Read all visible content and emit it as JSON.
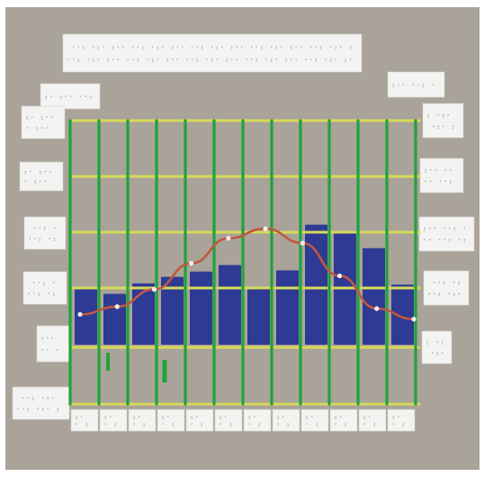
{
  "image": {
    "board_color": "#a9a39a",
    "frame_color": "#ffffff",
    "label_card_color": "#f3f3f1",
    "braille_dot_color": "#a7a7a3",
    "grid_line_green": "#1fa33a",
    "grid_line_yellow": "#d8d95a",
    "bar_color": "#2e3a93",
    "curve_color": "#c0573f",
    "curve_point_color": "#f2f2ef",
    "bar_levels": [
      0.43,
      0.39,
      0.47,
      0.52,
      0.56,
      0.61,
      0.43,
      0.57,
      0.92,
      0.87,
      0.74,
      0.46
    ],
    "curve_levels": [
      0.1,
      0.18,
      0.36,
      0.63,
      0.89,
      0.99,
      0.84,
      0.5,
      0.16,
      0.05
    ]
  }
}
